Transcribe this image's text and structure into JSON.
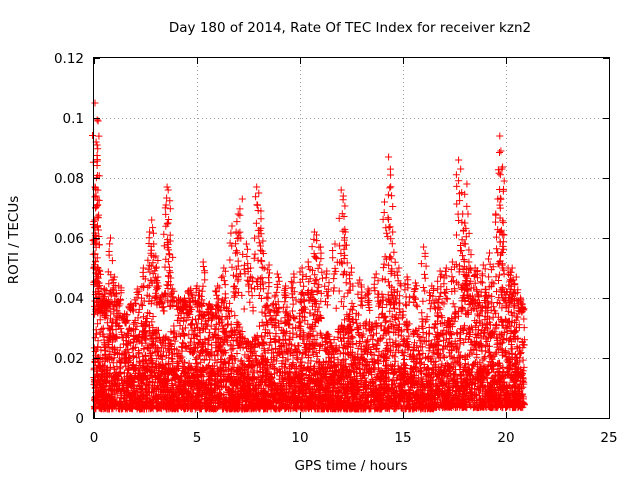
{
  "chart_data": {
    "type": "scatter",
    "title": "Day 180 of 2014, Rate Of TEC Index for receiver kzn2",
    "xlabel": "GPS time / hours",
    "ylabel": "ROTI / TECUs",
    "xlim": [
      0,
      25
    ],
    "ylim": [
      0,
      0.12
    ],
    "xticks": [
      0,
      5,
      10,
      15,
      20,
      25
    ],
    "yticks": [
      0,
      0.02,
      0.04,
      0.06,
      0.08,
      0.1,
      0.12
    ],
    "xtick_labels": [
      "0",
      "5",
      "10",
      "15",
      "20",
      "25"
    ],
    "ytick_labels": [
      "0",
      "0.02",
      "0.04",
      "0.06",
      "0.08",
      "0.1",
      "0.12"
    ],
    "grid": true,
    "marker": "+",
    "color": "#ff0000",
    "series": [
      {
        "name": "ROTI",
        "points": [
          [
            0.05,
            0.105
          ],
          [
            0.1,
            0.092
          ],
          [
            0.15,
            0.091
          ],
          [
            0.2,
            0.099
          ],
          [
            0.05,
            0.077
          ],
          [
            0.1,
            0.074
          ],
          [
            0.05,
            0.066
          ],
          [
            0.15,
            0.067
          ],
          [
            0.2,
            0.05
          ],
          [
            0.25,
            0.045
          ],
          [
            0.3,
            0.038
          ],
          [
            0.4,
            0.041
          ],
          [
            0.6,
            0.039
          ],
          [
            0.8,
            0.06
          ],
          [
            1.0,
            0.047
          ],
          [
            1.2,
            0.044
          ],
          [
            1.5,
            0.032
          ],
          [
            1.8,
            0.038
          ],
          [
            2.1,
            0.043
          ],
          [
            2.4,
            0.05
          ],
          [
            2.7,
            0.062
          ],
          [
            2.8,
            0.066
          ],
          [
            2.9,
            0.058
          ],
          [
            3.0,
            0.054
          ],
          [
            3.1,
            0.047
          ],
          [
            3.3,
            0.041
          ],
          [
            3.5,
            0.071
          ],
          [
            3.55,
            0.077
          ],
          [
            3.6,
            0.076
          ],
          [
            3.7,
            0.059
          ],
          [
            3.8,
            0.043
          ],
          [
            4.1,
            0.04
          ],
          [
            4.4,
            0.039
          ],
          [
            4.7,
            0.043
          ],
          [
            5.0,
            0.044
          ],
          [
            5.3,
            0.052
          ],
          [
            5.6,
            0.038
          ],
          [
            6.0,
            0.044
          ],
          [
            6.3,
            0.05
          ],
          [
            6.7,
            0.064
          ],
          [
            6.9,
            0.062
          ],
          [
            7.0,
            0.068
          ],
          [
            7.2,
            0.073
          ],
          [
            7.4,
            0.058
          ],
          [
            7.6,
            0.05
          ],
          [
            7.9,
            0.077
          ],
          [
            8.0,
            0.075
          ],
          [
            8.1,
            0.069
          ],
          [
            8.2,
            0.059
          ],
          [
            8.5,
            0.051
          ],
          [
            8.9,
            0.048
          ],
          [
            9.3,
            0.044
          ],
          [
            9.7,
            0.048
          ],
          [
            10.1,
            0.05
          ],
          [
            10.4,
            0.052
          ],
          [
            10.7,
            0.062
          ],
          [
            10.8,
            0.061
          ],
          [
            11.0,
            0.057
          ],
          [
            11.3,
            0.049
          ],
          [
            11.7,
            0.058
          ],
          [
            12.0,
            0.076
          ],
          [
            12.1,
            0.074
          ],
          [
            12.2,
            0.062
          ],
          [
            12.5,
            0.05
          ],
          [
            12.9,
            0.046
          ],
          [
            13.3,
            0.043
          ],
          [
            13.7,
            0.048
          ],
          [
            14.1,
            0.072
          ],
          [
            14.3,
            0.087
          ],
          [
            14.4,
            0.081
          ],
          [
            14.5,
            0.062
          ],
          [
            14.8,
            0.05
          ],
          [
            15.2,
            0.047
          ],
          [
            15.6,
            0.045
          ],
          [
            16.0,
            0.057
          ],
          [
            16.4,
            0.044
          ],
          [
            16.8,
            0.049
          ],
          [
            17.1,
            0.05
          ],
          [
            17.4,
            0.052
          ],
          [
            17.7,
            0.086
          ],
          [
            17.8,
            0.083
          ],
          [
            17.9,
            0.068
          ],
          [
            18.0,
            0.065
          ],
          [
            18.1,
            0.078
          ],
          [
            18.2,
            0.056
          ],
          [
            18.5,
            0.05
          ],
          [
            18.9,
            0.051
          ],
          [
            19.2,
            0.055
          ],
          [
            19.5,
            0.068
          ],
          [
            19.6,
            0.073
          ],
          [
            19.7,
            0.094
          ],
          [
            19.75,
            0.089
          ],
          [
            19.8,
            0.083
          ],
          [
            19.9,
            0.061
          ],
          [
            20.1,
            0.05
          ],
          [
            20.3,
            0.05
          ],
          [
            20.5,
            0.047
          ],
          [
            20.7,
            0.04
          ],
          [
            20.8,
            0.037
          ]
        ],
        "bulk": {
          "x_range": [
            0,
            20.9
          ],
          "y_range": [
            0.003,
            0.045
          ],
          "typical_y": 0.015
        }
      }
    ]
  }
}
